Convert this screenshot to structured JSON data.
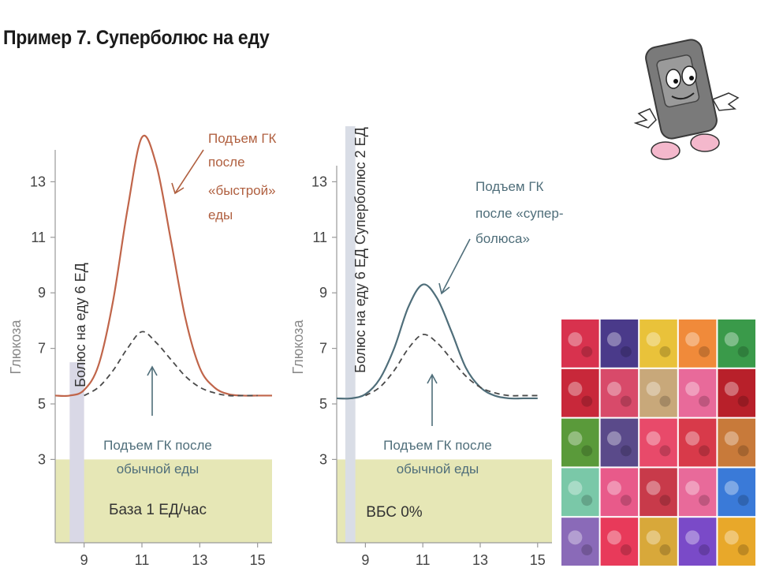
{
  "slide": {
    "title": "Пример 7. Суперболюс на еду"
  },
  "chart_data": [
    {
      "type": "line",
      "ylabel": "Глюкоза",
      "xlim": [
        8.0,
        15.5
      ],
      "ylim": [
        0,
        15
      ],
      "x_ticks": [
        9,
        11,
        13,
        15
      ],
      "x_tick_labels": [
        "9",
        "11",
        "13",
        "15"
      ],
      "y_ticks": [
        3,
        5,
        7,
        9,
        11,
        13
      ],
      "y_tick_labels": [
        "3",
        "5",
        "7",
        "9",
        "11",
        "13"
      ],
      "series": [
        {
          "style": "solid",
          "color": "#c0654a",
          "x": [
            8.0,
            8.5,
            9.0,
            9.5,
            10.0,
            10.5,
            11.0,
            11.5,
            12.0,
            12.5,
            13.0,
            13.5,
            14.0,
            14.5,
            15.0,
            15.5
          ],
          "y": [
            5.3,
            5.3,
            5.5,
            6.4,
            8.7,
            12.0,
            14.6,
            13.6,
            10.9,
            8.1,
            6.3,
            5.6,
            5.35,
            5.3,
            5.3,
            5.3
          ]
        },
        {
          "style": "dashed",
          "color": "#4a4a4a",
          "x": [
            9.0,
            9.5,
            10.0,
            10.5,
            11.0,
            11.5,
            12.0,
            12.5,
            13.0,
            13.5,
            14.0,
            14.5,
            15.0
          ],
          "y": [
            5.3,
            5.6,
            6.2,
            7.0,
            7.6,
            7.2,
            6.6,
            6.0,
            5.6,
            5.4,
            5.3,
            5.3,
            5.3
          ]
        }
      ],
      "bolus_bar": {
        "x_range": [
          8.5,
          9.0
        ],
        "y_range": [
          0,
          6.5
        ],
        "label": "Болюс на еду 6 ЕД",
        "color": "#d9d8e6"
      },
      "basal_area": {
        "x_range": [
          8.0,
          15.5
        ],
        "y_max": 3,
        "label": "База 1 ЕД/час",
        "color": "#e6e7b6"
      },
      "annotations": [
        {
          "text": [
            "Подъем ГК",
            "после",
            "«быстрой»",
            "еды"
          ],
          "color": "#b06040"
        },
        {
          "text": [
            "Подъем ГК после",
            "обычной еды"
          ],
          "color": "#4f6e7a"
        }
      ]
    },
    {
      "type": "line",
      "ylabel": "Глюкоза",
      "xlim": [
        8.0,
        15.5
      ],
      "ylim": [
        0,
        15
      ],
      "x_ticks": [
        9,
        11,
        13,
        15
      ],
      "x_tick_labels": [
        "9",
        "11",
        "13",
        "15"
      ],
      "y_ticks": [
        3,
        5,
        7,
        9,
        11,
        13
      ],
      "y_tick_labels": [
        "3",
        "5",
        "7",
        "9",
        "11",
        "13"
      ],
      "series": [
        {
          "style": "solid",
          "color": "#4f6e7a",
          "x": [
            8.0,
            8.5,
            9.0,
            9.5,
            10.0,
            10.5,
            11.0,
            11.5,
            12.0,
            12.5,
            13.0,
            13.5,
            14.0,
            14.5,
            15.0
          ],
          "y": [
            5.2,
            5.2,
            5.35,
            5.9,
            7.0,
            8.5,
            9.3,
            8.8,
            7.6,
            6.3,
            5.6,
            5.3,
            5.2,
            5.2,
            5.2
          ]
        },
        {
          "style": "dashed",
          "color": "#4a4a4a",
          "x": [
            9.0,
            9.5,
            10.0,
            10.5,
            11.0,
            11.5,
            12.0,
            12.5,
            13.0,
            13.5,
            14.0,
            14.5,
            15.0
          ],
          "y": [
            5.3,
            5.6,
            6.2,
            7.0,
            7.5,
            7.2,
            6.6,
            6.0,
            5.6,
            5.4,
            5.3,
            5.3,
            5.3
          ]
        }
      ],
      "bolus_bar": {
        "x_range": [
          8.3,
          8.65
        ],
        "y_range": [
          0,
          15
        ],
        "label": "Болюс на еду 6 ЕД  Суперболюс 2 ЕД",
        "color": "#d9dde6"
      },
      "basal_area": {
        "x_range": [
          8.0,
          15.5
        ],
        "y_max": 3,
        "label": "ВБС 0%",
        "color": "#e6e7b6"
      },
      "annotations": [
        {
          "text": [
            "Подъем ГК",
            "после «супер-",
            "болюса»"
          ],
          "color": "#4f6e7a"
        },
        {
          "text": [
            "Подъем ГК после",
            "обычной еды"
          ],
          "color": "#4f6e7a"
        }
      ]
    }
  ],
  "candy_grid": {
    "colors": [
      [
        "#d8324e",
        "#4a3a8a",
        "#e9c23a",
        "#f08a3a",
        "#3a9a4a"
      ],
      [
        "#c8283a",
        "#d84a6a",
        "#c8a87a",
        "#e86a9a",
        "#b8202a"
      ],
      [
        "#5a9a3a",
        "#5a4a8a",
        "#e84a6a",
        "#d83a4a",
        "#c87a3a"
      ],
      [
        "#7ac8a8",
        "#e85a8a",
        "#c83a4a",
        "#e86a9a",
        "#3a7ad8"
      ],
      [
        "#8a6ab8",
        "#e83a5a",
        "#d8a83a",
        "#7a4ac8",
        "#e8a82a"
      ]
    ]
  }
}
